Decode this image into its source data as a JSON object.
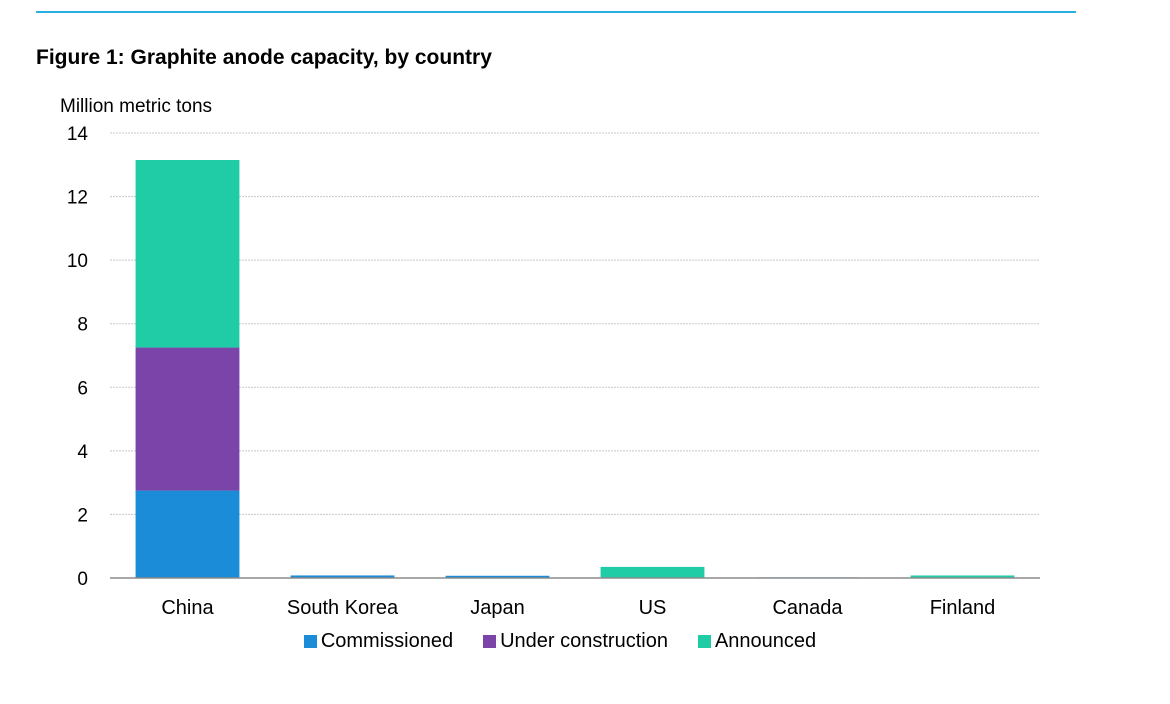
{
  "figure": {
    "title": "Figure 1:  Graphite anode capacity, by country",
    "y_unit_label": "Million metric tons",
    "accent_rule_color": "#29aee0"
  },
  "chart_data": {
    "type": "bar",
    "stacked": true,
    "title": "Figure 1:  Graphite anode capacity, by country",
    "xlabel": "",
    "ylabel": "Million metric tons",
    "ylim": [
      0,
      14
    ],
    "yticks": [
      0,
      2,
      4,
      6,
      8,
      10,
      12,
      14
    ],
    "grid": true,
    "legend_position": "bottom",
    "categories": [
      "China",
      "South Korea",
      "Japan",
      "US",
      "Canada",
      "Finland"
    ],
    "series": [
      {
        "name": "Commissioned",
        "color": "#1a8cd8",
        "values": [
          2.75,
          0.08,
          0.07,
          0.0,
          0.02,
          0.0
        ]
      },
      {
        "name": "Under construction",
        "color": "#7a44a8",
        "values": [
          4.5,
          0.0,
          0.0,
          0.0,
          0.0,
          0.0
        ]
      },
      {
        "name": "Announced",
        "color": "#1fcca5",
        "values": [
          5.9,
          0.0,
          0.0,
          0.35,
          0.0,
          0.08
        ]
      }
    ]
  }
}
